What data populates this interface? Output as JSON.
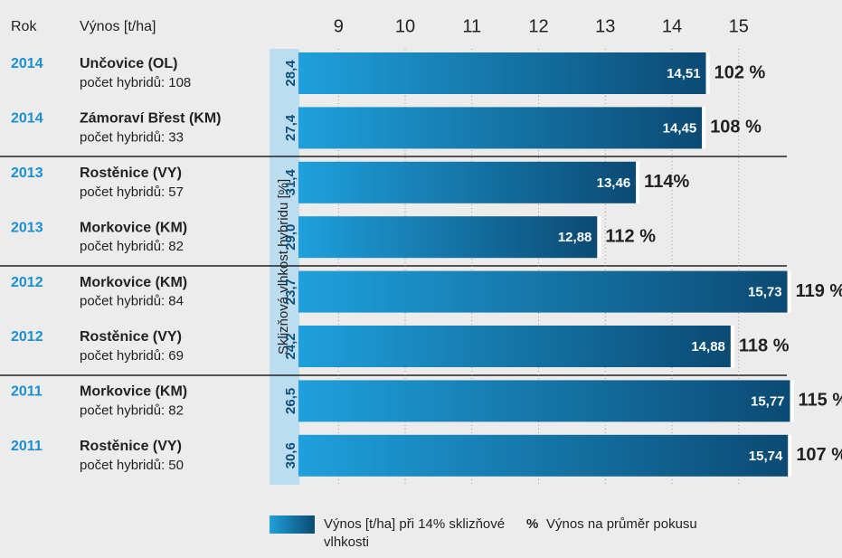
{
  "chart_data": {
    "type": "bar",
    "orientation": "horizontal",
    "header": {
      "year": "Rok",
      "yield": "Výnos [t/ha]"
    },
    "years": [
      "2014",
      "2014",
      "2013",
      "2013",
      "2012",
      "2012",
      "2011",
      "2011"
    ],
    "categories": [
      "Unčovice (OL)",
      "Zámoraví Břest (KM)",
      "Rostěnice (VY)",
      "Morkovice (KM)",
      "Morkovice (KM)",
      "Rostěnice (VY)",
      "Morkovice (KM)",
      "Rostěnice (VY)"
    ],
    "hybrids_label": "počet hybridů:",
    "hybrids": [
      108,
      33,
      57,
      82,
      84,
      69,
      82,
      50
    ],
    "moisture": {
      "label": "Sklizňová vlhkost hybridu [%]",
      "values": [
        28.4,
        27.4,
        31.4,
        29.0,
        23.7,
        24.2,
        26.5,
        30.6
      ],
      "value_labels": [
        "28,4",
        "27,4",
        "31,4",
        "29,0",
        "23,7",
        "24,2",
        "26,5",
        "30,6"
      ]
    },
    "series": [
      {
        "name": "Výnos [t/ha] při 14% sklizňové vlhkosti",
        "color": "#0e5a86",
        "values": [
          14.51,
          14.45,
          13.46,
          12.88,
          15.73,
          14.88,
          15.77,
          15.74
        ],
        "value_labels": [
          "14,51",
          "14,45",
          "13,46",
          "12,88",
          "15,73",
          "14,88",
          "15,77",
          "15,74"
        ]
      }
    ],
    "percent": {
      "symbol": "%",
      "name": "Výnos na průměr pokusu",
      "values": [
        102,
        108,
        114,
        112,
        119,
        118,
        115,
        107
      ],
      "value_labels": [
        "102 %",
        "108 %",
        "114%",
        "112 %",
        "119 %",
        "118 %",
        "115 %",
        "107 %"
      ]
    },
    "xlim": [
      8.4,
      16.4
    ],
    "xticks": [
      9,
      10,
      11,
      12,
      13,
      14,
      15
    ],
    "grid": true
  }
}
